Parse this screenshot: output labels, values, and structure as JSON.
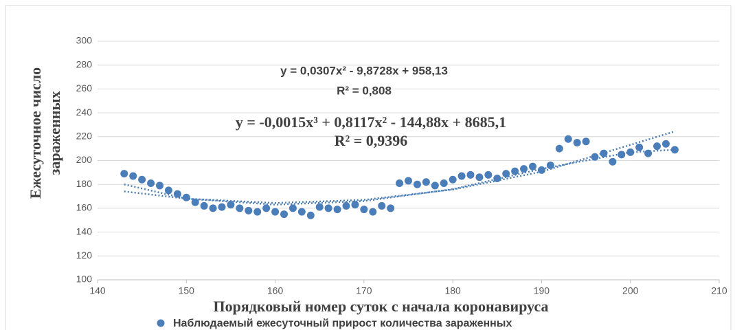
{
  "chart_data": {
    "type": "scatter",
    "x_label": "Порядковый номер суток с начала коронавируса",
    "y_label": [
      "Ежесуточное число",
      "зараженных"
    ],
    "x": [
      143,
      144,
      145,
      146,
      147,
      148,
      149,
      150,
      151,
      152,
      153,
      154,
      155,
      156,
      157,
      158,
      159,
      160,
      161,
      162,
      163,
      164,
      165,
      166,
      167,
      168,
      169,
      170,
      171,
      172,
      173,
      174,
      175,
      176,
      177,
      178,
      179,
      180,
      181,
      182,
      183,
      184,
      185,
      186,
      187,
      188,
      189,
      190,
      191,
      192,
      193,
      194,
      195,
      196,
      197,
      198,
      199,
      200,
      201,
      202,
      203,
      204,
      205
    ],
    "series": [
      {
        "name": "Наблюдаемый ежесуточный прирост количества зараженных",
        "color": "#4a7ebb",
        "values": [
          189,
          187,
          184,
          181,
          179,
          175,
          172,
          169,
          165,
          162,
          160,
          161,
          163,
          160,
          158,
          157,
          160,
          157,
          155,
          160,
          157,
          154,
          161,
          160,
          159,
          162,
          163,
          159,
          157,
          162,
          160,
          181,
          183,
          180,
          182,
          179,
          181,
          184,
          187,
          188,
          186,
          188,
          185,
          189,
          191,
          193,
          195,
          192,
          196,
          210,
          218,
          215,
          216,
          203,
          206,
          199,
          205,
          207,
          211,
          206,
          212,
          214,
          209
        ]
      }
    ],
    "trendlines": [
      {
        "color": "#4a7ebb",
        "x": [
          143,
          150,
          160,
          170,
          180,
          190,
          205
        ],
        "values": [
          174.1,
          168,
          164.4,
          167,
          175.7,
          190.6,
          224.4
        ]
      },
      {
        "color": "#4a7ebb",
        "x": [
          143,
          150,
          160,
          170,
          180,
          190,
          200,
          205
        ],
        "values": [
          180,
          168,
          163,
          166,
          176,
          193,
          207,
          209
        ]
      }
    ],
    "annotations": [
      {
        "text": "y = 0,0307x² - 9,8728x + 958,13"
      },
      {
        "text": "R² = 0,808"
      },
      {
        "text": "y = -0,0015x³ + 0,8117x² - 144,88x + 8685,1"
      },
      {
        "text": "R² = 0,9396"
      }
    ],
    "xlim": [
      140,
      210
    ],
    "xticks": [
      140,
      150,
      160,
      170,
      180,
      190,
      200,
      210
    ],
    "ylim": [
      100,
      300
    ],
    "yticks": [
      100,
      120,
      140,
      160,
      180,
      200,
      220,
      240,
      260,
      280,
      300
    ],
    "grid": true,
    "legend": "bottom"
  }
}
